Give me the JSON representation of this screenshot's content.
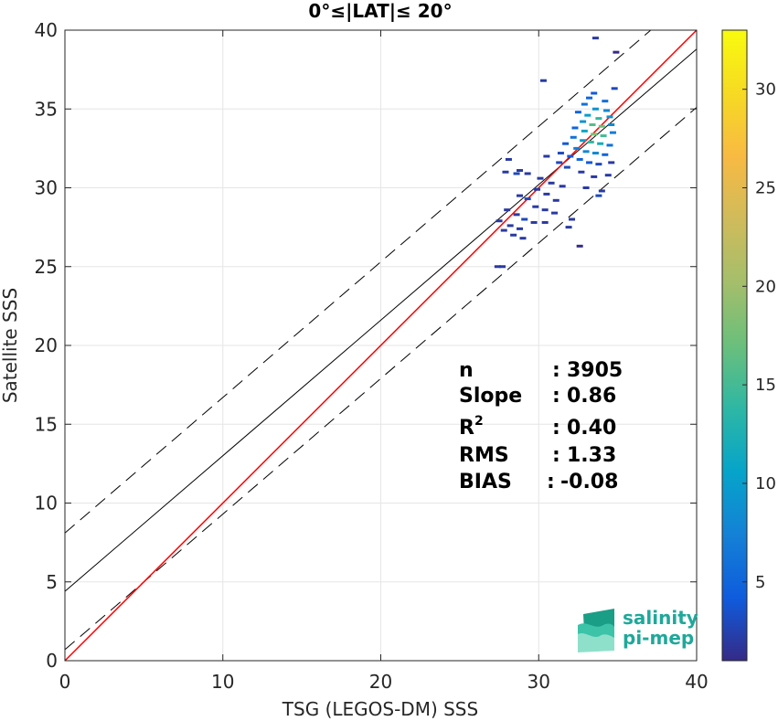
{
  "chart_data": {
    "type": "scatter",
    "title": "0°≤|LAT|≤ 20°",
    "xlabel": "TSG (LEGOS-DM) SSS",
    "ylabel": "Satellite SSS",
    "xlim": [
      0,
      40
    ],
    "ylim": [
      0,
      40
    ],
    "xticks": [
      0,
      10,
      20,
      30,
      40
    ],
    "yticks": [
      0,
      5,
      10,
      15,
      20,
      25,
      30,
      35,
      40
    ],
    "grid": true,
    "reference_lines": {
      "identity": {
        "slope": 1.0,
        "intercept": 0,
        "color": "#ff0000"
      },
      "fit": {
        "slope": 0.86,
        "intercept": 4.4,
        "color": "#000000"
      },
      "upper_bound": {
        "slope": 0.86,
        "intercept": 8.1,
        "style": "dashed"
      },
      "lower_bound": {
        "slope": 0.86,
        "intercept": 0.7,
        "style": "dashed"
      }
    },
    "density_points": [
      [
        33.6,
        39.5,
        2
      ],
      [
        34.9,
        38.6,
        1
      ],
      [
        30.3,
        36.8,
        2
      ],
      [
        33.5,
        36.0,
        4
      ],
      [
        34.8,
        36.3,
        3
      ],
      [
        33.2,
        35.7,
        5
      ],
      [
        34.2,
        35.5,
        6
      ],
      [
        32.9,
        35.3,
        6
      ],
      [
        33.6,
        35.0,
        9
      ],
      [
        34.3,
        34.9,
        8
      ],
      [
        32.5,
        34.8,
        5
      ],
      [
        33.1,
        34.6,
        10
      ],
      [
        33.8,
        34.4,
        14
      ],
      [
        34.5,
        34.5,
        9
      ],
      [
        32.8,
        34.2,
        9
      ],
      [
        33.4,
        34.0,
        16
      ],
      [
        34.0,
        33.9,
        17
      ],
      [
        34.6,
        34.0,
        8
      ],
      [
        32.3,
        33.8,
        5
      ],
      [
        32.9,
        33.6,
        11
      ],
      [
        33.5,
        33.4,
        18
      ],
      [
        34.1,
        33.3,
        15
      ],
      [
        34.7,
        33.5,
        7
      ],
      [
        32.2,
        33.2,
        6
      ],
      [
        32.8,
        33.0,
        10
      ],
      [
        33.3,
        32.9,
        14
      ],
      [
        33.9,
        32.8,
        12
      ],
      [
        34.5,
        32.7,
        6
      ],
      [
        31.7,
        32.8,
        4
      ],
      [
        32.4,
        32.5,
        7
      ],
      [
        33.0,
        32.3,
        8
      ],
      [
        33.6,
        32.2,
        8
      ],
      [
        34.2,
        32.1,
        5
      ],
      [
        31.4,
        32.2,
        3
      ],
      [
        32.0,
        32.0,
        4
      ],
      [
        32.6,
        31.8,
        5
      ],
      [
        33.2,
        31.6,
        4
      ],
      [
        33.8,
        31.5,
        3
      ],
      [
        34.6,
        31.6,
        2
      ],
      [
        30.5,
        32.0,
        2
      ],
      [
        31.3,
        31.6,
        3
      ],
      [
        31.8,
        31.3,
        3
      ],
      [
        32.7,
        31.0,
        2
      ],
      [
        33.5,
        30.7,
        2
      ],
      [
        34.4,
        30.8,
        2
      ],
      [
        28.1,
        31.8,
        2
      ],
      [
        28.8,
        31.1,
        2
      ],
      [
        27.9,
        31.0,
        2
      ],
      [
        28.6,
        30.9,
        3
      ],
      [
        29.3,
        30.9,
        2
      ],
      [
        30.1,
        30.6,
        2
      ],
      [
        30.8,
        30.3,
        2
      ],
      [
        31.5,
        30.1,
        2
      ],
      [
        33.0,
        30.0,
        2
      ],
      [
        34.0,
        29.8,
        2
      ],
      [
        29.9,
        29.9,
        2
      ],
      [
        30.5,
        29.6,
        2
      ],
      [
        31.1,
        29.2,
        2
      ],
      [
        33.8,
        29.5,
        3
      ],
      [
        28.8,
        29.5,
        2
      ],
      [
        29.3,
        29.3,
        3
      ],
      [
        29.8,
        28.8,
        2
      ],
      [
        30.4,
        28.6,
        2
      ],
      [
        31.0,
        28.4,
        2
      ],
      [
        32.1,
        28.0,
        2
      ],
      [
        28.0,
        28.6,
        2
      ],
      [
        28.6,
        28.3,
        2
      ],
      [
        29.1,
        28.0,
        3
      ],
      [
        29.7,
        27.8,
        2
      ],
      [
        30.4,
        27.8,
        2
      ],
      [
        27.5,
        27.9,
        2
      ],
      [
        28.2,
        27.6,
        2
      ],
      [
        28.8,
        27.4,
        2
      ],
      [
        31.9,
        27.5,
        2
      ],
      [
        27.8,
        27.3,
        2
      ],
      [
        28.4,
        27.0,
        2
      ],
      [
        29.0,
        26.8,
        2
      ],
      [
        32.6,
        26.3,
        1
      ],
      [
        27.4,
        25.0,
        2
      ],
      [
        27.7,
        25.0,
        2
      ]
    ],
    "stats": {
      "n": "3905",
      "slope": "0.86",
      "r2": "0.40",
      "rms": "1.33",
      "bias": "-0.08"
    },
    "colorbar": {
      "min": 1,
      "max": 33,
      "ticks": [
        5,
        10,
        15,
        20,
        25,
        30
      ],
      "colormap": "parula"
    }
  },
  "stats_labels": {
    "n": "n",
    "slope": "Slope",
    "r2_base": "R",
    "r2_sup": "2",
    "rms": "RMS",
    "bias": "BIAS"
  },
  "logo": {
    "line1": "salinity",
    "line2": "pi-mep"
  }
}
